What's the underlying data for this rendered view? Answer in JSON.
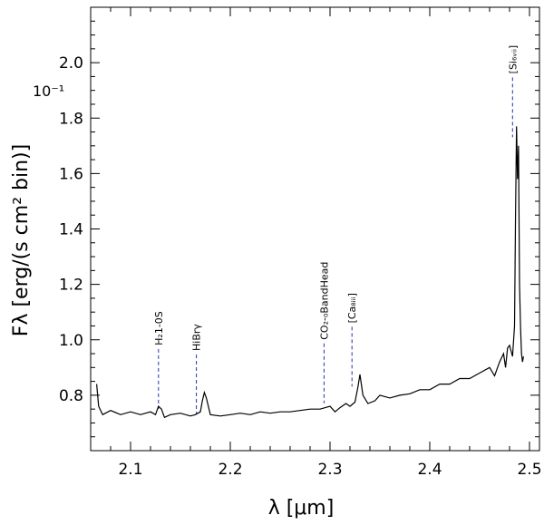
{
  "chart_data": {
    "type": "line",
    "xlabel": "λ [μm]",
    "ylabel": "Fλ [erg/(s cm² bin)]",
    "y_exponent_label": "10⁻¹",
    "xlim": [
      2.06,
      2.51
    ],
    "ylim": [
      0.6,
      2.2
    ],
    "x_ticks": [
      2.1,
      2.2,
      2.3,
      2.4,
      2.5
    ],
    "x_tick_labels": [
      "2.1",
      "2.2",
      "2.3",
      "2.4",
      "2.5"
    ],
    "y_ticks": [
      0.8,
      1.0,
      1.2,
      1.4,
      1.6,
      1.8,
      2.0
    ],
    "y_tick_labels": [
      "0.8",
      "1.0",
      "1.2",
      "1.4",
      "1.6",
      "1.8",
      "2.0"
    ],
    "grid": false,
    "series": [
      {
        "color": "#000000",
        "x": [
          2.066,
          2.068,
          2.072,
          2.08,
          2.09,
          2.1,
          2.11,
          2.12,
          2.125,
          2.128,
          2.131,
          2.134,
          2.14,
          2.15,
          2.16,
          2.165,
          2.17,
          2.172,
          2.174,
          2.176,
          2.18,
          2.19,
          2.2,
          2.21,
          2.22,
          2.23,
          2.24,
          2.25,
          2.26,
          2.27,
          2.28,
          2.29,
          2.3,
          2.305,
          2.31,
          2.316,
          2.32,
          2.325,
          2.328,
          2.33,
          2.333,
          2.338,
          2.345,
          2.35,
          2.36,
          2.37,
          2.38,
          2.39,
          2.4,
          2.41,
          2.42,
          2.43,
          2.44,
          2.45,
          2.46,
          2.465,
          2.47,
          2.474,
          2.476,
          2.478,
          2.48,
          2.483,
          2.485,
          2.486,
          2.487,
          2.488,
          2.489,
          2.49,
          2.491,
          2.492,
          2.493,
          2.494
        ],
        "y": [
          0.84,
          0.76,
          0.73,
          0.745,
          0.73,
          0.74,
          0.73,
          0.74,
          0.73,
          0.76,
          0.75,
          0.72,
          0.73,
          0.735,
          0.725,
          0.73,
          0.74,
          0.78,
          0.81,
          0.79,
          0.73,
          0.725,
          0.73,
          0.735,
          0.73,
          0.74,
          0.735,
          0.74,
          0.74,
          0.745,
          0.75,
          0.75,
          0.76,
          0.74,
          0.755,
          0.77,
          0.76,
          0.775,
          0.83,
          0.875,
          0.8,
          0.77,
          0.78,
          0.8,
          0.79,
          0.8,
          0.805,
          0.82,
          0.82,
          0.84,
          0.84,
          0.86,
          0.86,
          0.88,
          0.9,
          0.87,
          0.92,
          0.95,
          0.9,
          0.97,
          0.98,
          0.94,
          1.05,
          1.45,
          1.77,
          1.58,
          1.7,
          1.2,
          1.05,
          0.95,
          0.92,
          0.94
        ]
      }
    ],
    "annotations": [
      {
        "text": "H₂1-0S",
        "x": 2.128,
        "y_top": 0.98
      },
      {
        "text": "HiBrγ",
        "x": 2.166,
        "y_top": 0.96
      },
      {
        "text": "CO₂-₀BandHead",
        "x": 2.294,
        "y_top": 1.0
      },
      {
        "text": "[Ca₈ᵢᵢᵢ]",
        "x": 2.322,
        "y_top": 1.06
      },
      {
        "text": "[Si₆ᵥᵢᵢ]",
        "x": 2.483,
        "y_top": 1.96
      }
    ]
  }
}
